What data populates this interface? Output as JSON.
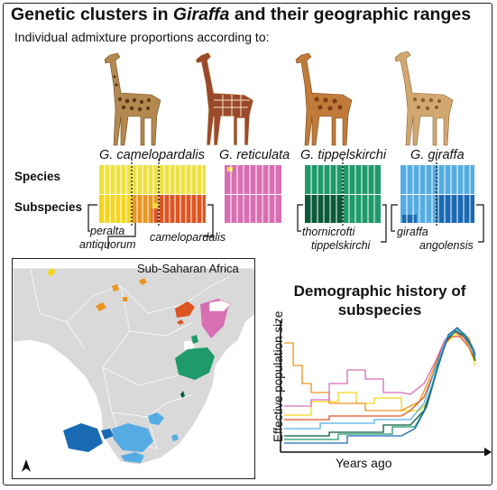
{
  "header": {
    "title_pre": "Genetic clusters in ",
    "title_genus": "Giraffa",
    "title_post": " and their geographic ranges",
    "subtitle": "Individual admixture proportions according to:"
  },
  "species": [
    {
      "name": "G. camelopardalis",
      "color": "#ece142"
    },
    {
      "name": "G. reticulata",
      "color": "#d86fb3"
    },
    {
      "name": "G. tippelskirchi",
      "color": "#1e9a6b"
    },
    {
      "name": "G. giraffa",
      "color": "#55ace3"
    }
  ],
  "rows": {
    "species": "Species",
    "subspecies": "Subspecies"
  },
  "subspecies": {
    "peralta": "peralta",
    "antiquorum": "antiquorum",
    "camelopardalis": "camelopardalis",
    "thornicrofti": "thornicrofti",
    "tippelskirchi": "tippelskirchi",
    "giraffa": "giraffa",
    "angolensis": "angolensis"
  },
  "subspecies_colors": {
    "peralta": "#f2d51f",
    "antiquorum": "#ea9420",
    "camelopardalis": "#dd5520",
    "reticulata": "#d86fb3",
    "thornicrofti": "#0a5a3a",
    "tippelskirchi": "#1e9a6b",
    "giraffa": "#55ace3",
    "angolensis": "#1a6ab3"
  },
  "map": {
    "label": "Sub-Saharan Africa",
    "north_arrow": "north-arrow"
  },
  "demography": {
    "title": "Demographic history of subspecies",
    "xlabel": "Years ago",
    "ylabel": "Effective population size"
  }
}
